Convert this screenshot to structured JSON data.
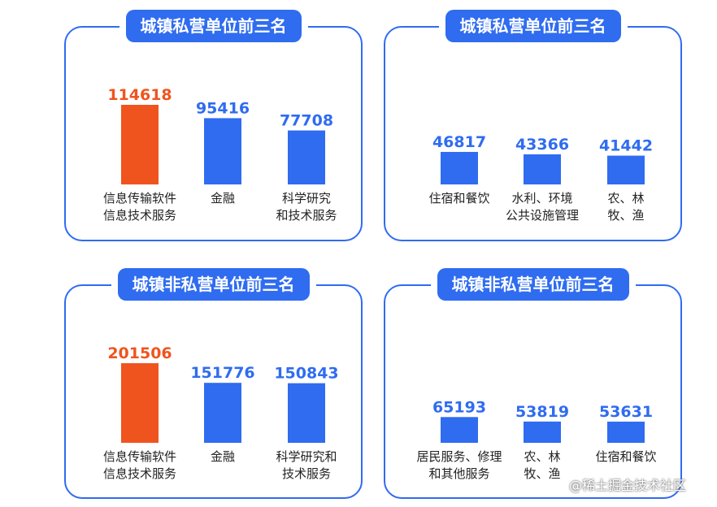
{
  "chart_data": [
    {
      "type": "bar",
      "title": "城镇私营单位前三名",
      "categories": [
        [
          "信息传输软件",
          "信息技术服务"
        ],
        [
          "金融"
        ],
        [
          "科学研究",
          "和技术服务"
        ]
      ],
      "values": [
        114618,
        95416,
        77708
      ],
      "highlight_index": 0,
      "ylim": [
        0,
        114618
      ]
    },
    {
      "type": "bar",
      "title": "城镇私营单位前三名",
      "categories": [
        [
          "住宿和餐饮"
        ],
        [
          "水利、环境",
          "公共设施管理"
        ],
        [
          "农、林",
          "牧、渔"
        ]
      ],
      "values": [
        46817,
        43366,
        41442
      ],
      "highlight_index": null,
      "ylim": [
        0,
        114618
      ]
    },
    {
      "type": "bar",
      "title": "城镇非私营单位前三名",
      "categories": [
        [
          "信息传输软件",
          "信息技术服务"
        ],
        [
          "金融"
        ],
        [
          "科学研究和",
          "技术服务"
        ]
      ],
      "values": [
        201506,
        151776,
        150843
      ],
      "highlight_index": 0,
      "ylim": [
        0,
        201506
      ]
    },
    {
      "type": "bar",
      "title": "城镇非私营单位前三名",
      "categories": [
        [
          "居民服务、修理",
          "和其他服务"
        ],
        [
          "农、林",
          "牧、渔"
        ],
        [
          "住宿和餐饮"
        ]
      ],
      "values": [
        65193,
        53819,
        53631
      ],
      "highlight_index": null,
      "ylim": [
        0,
        201506
      ]
    }
  ],
  "colors": {
    "primary": "#2f6cf0",
    "highlight": "#f0541e",
    "label_text": "#222222"
  },
  "watermark": "@稀土掘金技术社区"
}
